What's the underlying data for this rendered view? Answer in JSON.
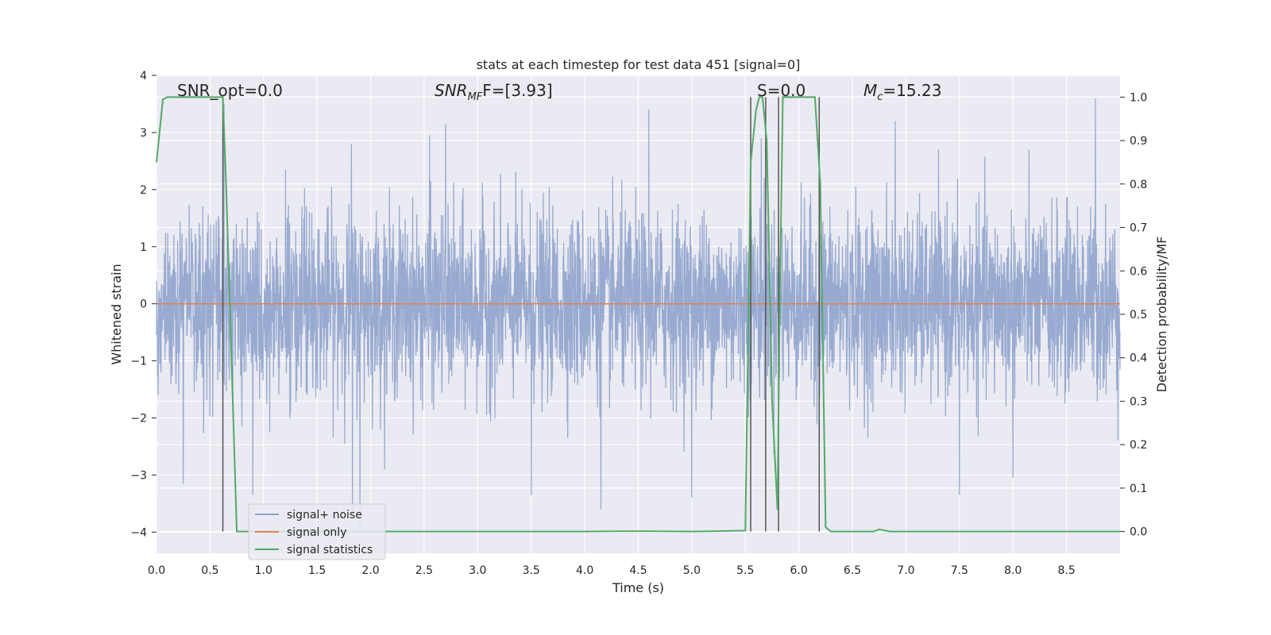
{
  "chart_data": {
    "type": "line",
    "title": "stats at each timestep for test data 451 [signal=0]",
    "xlabel": "Time (s)",
    "ylabel_left": "Whitened strain",
    "ylabel_right": "Detection probability/MF",
    "xlim": [
      0.0,
      9.0
    ],
    "ylim_left": [
      -4.37,
      4.0
    ],
    "ylim_right": [
      -0.05,
      1.05
    ],
    "x_ticks": [
      0.0,
      0.5,
      1.0,
      1.5,
      2.0,
      2.5,
      3.0,
      3.5,
      4.0,
      4.5,
      5.0,
      5.5,
      6.0,
      6.5,
      7.0,
      7.5,
      8.0,
      8.5
    ],
    "x_tick_labels": [
      "0.0",
      "0.5",
      "1.0",
      "1.5",
      "2.0",
      "2.5",
      "3.0",
      "3.5",
      "4.0",
      "4.5",
      "5.0",
      "5.5",
      "6.0",
      "6.5",
      "7.0",
      "7.5",
      "8.0",
      "8.5"
    ],
    "y_left_ticks": [
      4,
      3,
      2,
      1,
      0,
      -1,
      -2,
      -3,
      -4
    ],
    "y_left_tick_labels": [
      "4",
      "3",
      "2",
      "1",
      "0",
      "−1",
      "−2",
      "−3",
      "−4"
    ],
    "y_right_ticks": [
      1.0,
      0.9,
      0.8,
      0.7,
      0.6,
      0.5,
      0.4,
      0.3,
      0.2,
      0.1,
      0.0
    ],
    "y_right_tick_labels": [
      "1.0",
      "0.9",
      "0.8",
      "0.7",
      "0.6",
      "0.5",
      "0.4",
      "0.3",
      "0.2",
      "0.1",
      "0.0"
    ],
    "grid": true,
    "legend": {
      "placement": "lower-left",
      "entries": [
        {
          "name": "signal+ noise",
          "color": "#8fa3cc"
        },
        {
          "name": "signal only",
          "color": "#dd8452"
        },
        {
          "name": "signal statistics",
          "color": "#55a868"
        }
      ]
    },
    "annotations": {
      "snr_opt": "SNR_opt=0.0",
      "snr_mf_main": "SNR",
      "snr_mf_sub": "MF",
      "snr_mf_rest": "F=[3.93]",
      "s_label": "S=0.0",
      "mc_main": "M",
      "mc_sub": "c",
      "mc_rest": "=15.23"
    },
    "series": [
      {
        "name": "signal+ noise",
        "axis": "left",
        "color": "#8fa3cc",
        "description": "whitened noisy strain, approx symmetric band",
        "noise_amplitude": 1.0,
        "peaks_high": [
          [
            0.63,
            3.5
          ],
          [
            1.82,
            2.8
          ],
          [
            2.55,
            2.95
          ],
          [
            2.7,
            3.15
          ],
          [
            4.6,
            3.4
          ],
          [
            5.65,
            2.9
          ],
          [
            6.9,
            3.2
          ],
          [
            8.77,
            3.6
          ]
        ],
        "peaks_low": [
          [
            0.25,
            -3.15
          ],
          [
            0.9,
            -3.35
          ],
          [
            1.83,
            -3.65
          ],
          [
            1.9,
            -3.95
          ],
          [
            3.5,
            -3.35
          ],
          [
            4.15,
            -3.6
          ],
          [
            5.0,
            -3.4
          ],
          [
            7.5,
            -3.35
          ],
          [
            8.0,
            -3.05
          ]
        ]
      },
      {
        "name": "signal only",
        "axis": "left",
        "color": "#dd8452",
        "x": [
          0.0,
          9.0
        ],
        "y": [
          0.0,
          0.0
        ]
      },
      {
        "name": "signal statistics",
        "axis": "right",
        "color": "#55a868",
        "x": [
          0.0,
          0.06,
          0.1,
          0.2,
          0.4,
          0.6,
          0.62,
          0.65,
          0.75,
          1.0,
          2.0,
          3.0,
          4.0,
          4.5,
          5.0,
          5.5,
          5.55,
          5.6,
          5.63,
          5.66,
          5.7,
          5.75,
          5.8,
          5.82,
          5.85,
          5.9,
          6.0,
          6.15,
          6.2,
          6.25,
          6.3,
          6.5,
          6.7,
          6.75,
          6.85,
          7.0,
          8.0,
          9.0
        ],
        "y": [
          0.85,
          0.995,
          1.0,
          1.0,
          1.0,
          1.0,
          1.0,
          0.8,
          0.0,
          0.0,
          0.0,
          0.0,
          0.0,
          0.001,
          0.0,
          0.002,
          0.85,
          0.97,
          1.0,
          1.0,
          0.9,
          0.3,
          0.05,
          0.5,
          1.0,
          1.0,
          1.0,
          1.0,
          0.8,
          0.01,
          0.0,
          0.0,
          0.0,
          0.005,
          0.0,
          0.0,
          0.0,
          0.0
        ]
      }
    ],
    "vertical_lines": {
      "color": "#555555",
      "x": [
        0.62,
        5.55,
        5.69,
        5.81,
        6.19
      ]
    }
  }
}
